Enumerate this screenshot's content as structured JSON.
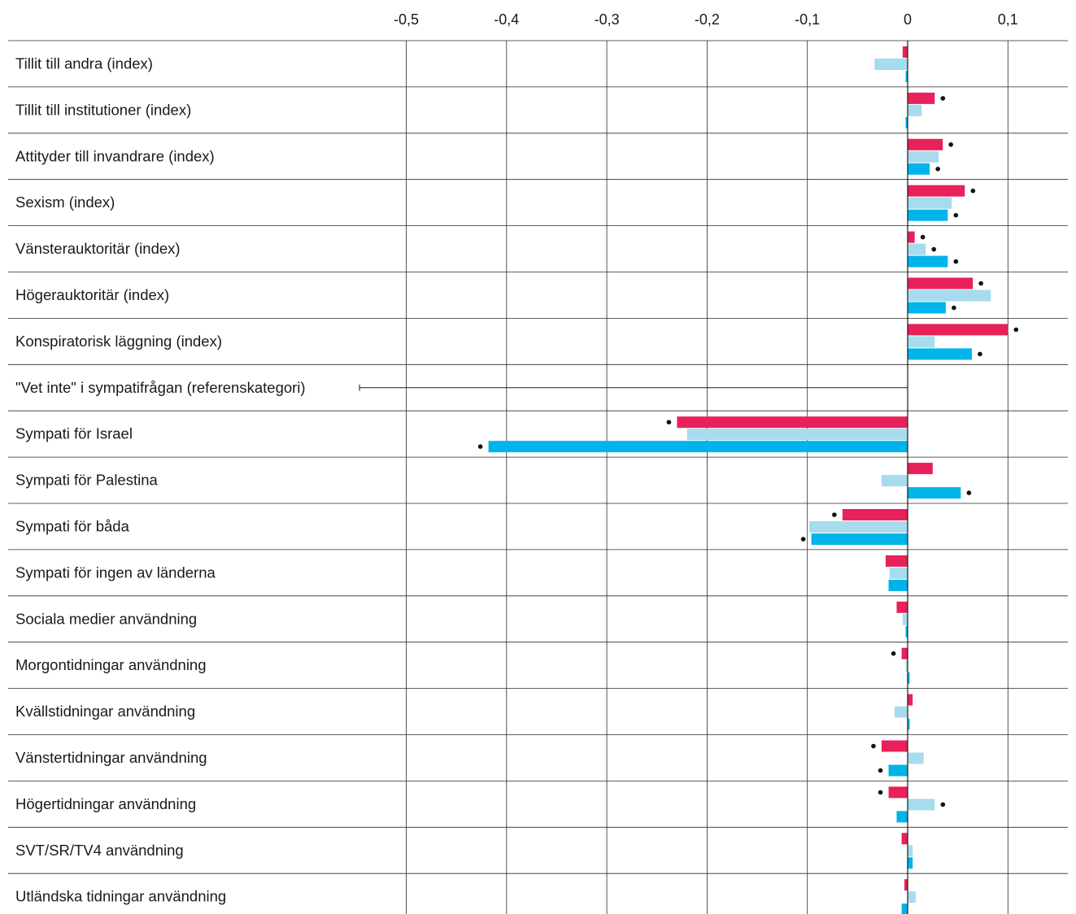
{
  "chart_data": {
    "type": "bar",
    "orientation": "horizontal",
    "title": "",
    "xlabel": "",
    "ylabel": "",
    "xlim": [
      -0.5,
      0.1
    ],
    "x_ticks": [
      -0.5,
      -0.4,
      -0.3,
      -0.2,
      -0.1,
      0,
      0.1
    ],
    "x_tick_labels": [
      "-0,5",
      "-0,4",
      "-0,3",
      "-0,2",
      "-0,1",
      "0",
      "0,1"
    ],
    "grid": true,
    "legend": "none",
    "categories": [
      "Tillit till andra (index)",
      "Tillit till institutioner (index)",
      "Attityder till invandrare (index)",
      "Sexism (index)",
      "Vänsterauktoritär (index)",
      "Högerauktoritär (index)",
      "Konspiratorisk läggning (index)",
      "\"Vet inte\" i sympatifrågan (referenskategori)",
      "Sympati för Israel",
      "Sympati för Palestina",
      "Sympati för båda",
      "Sympati för ingen av länderna",
      "Sociala medier användning",
      "Morgontidningar användning",
      "Kvällstidningar användning",
      "Vänstertidningar användning",
      "Högertidningar användning",
      "SVT/SR/TV4 användning",
      "Utländska tidningar användning"
    ],
    "reference_category_index": 7,
    "series": [
      {
        "color": "#e8215a",
        "values": [
          -0.005,
          0.027,
          0.035,
          0.057,
          0.007,
          0.065,
          0.1,
          null,
          -0.23,
          0.025,
          -0.065,
          -0.022,
          -0.011,
          -0.006,
          0.005,
          -0.026,
          -0.019,
          -0.006,
          0.0
        ],
        "significant": [
          false,
          true,
          true,
          true,
          true,
          true,
          true,
          false,
          true,
          false,
          true,
          false,
          false,
          true,
          false,
          true,
          true,
          false,
          false
        ]
      },
      {
        "color": "#a6dcee",
        "values": [
          -0.033,
          0.014,
          0.031,
          0.044,
          0.018,
          0.083,
          0.027,
          null,
          -0.22,
          -0.026,
          -0.098,
          -0.018,
          -0.005,
          -0.002,
          -0.013,
          0.016,
          0.027,
          0.005,
          0.008
        ],
        "significant": [
          false,
          false,
          false,
          false,
          true,
          false,
          false,
          false,
          false,
          false,
          false,
          false,
          false,
          false,
          false,
          false,
          true,
          false,
          false
        ]
      },
      {
        "color": "#00b4ea",
        "values": [
          -0.002,
          -0.002,
          0.022,
          0.04,
          0.04,
          0.038,
          0.064,
          null,
          -0.418,
          0.053,
          -0.096,
          -0.019,
          -0.002,
          0.002,
          0.002,
          -0.019,
          -0.011,
          0.005,
          -0.006
        ],
        "significant": [
          false,
          false,
          true,
          true,
          true,
          true,
          true,
          false,
          true,
          true,
          true,
          false,
          false,
          false,
          false,
          true,
          false,
          false,
          false
        ]
      }
    ]
  }
}
